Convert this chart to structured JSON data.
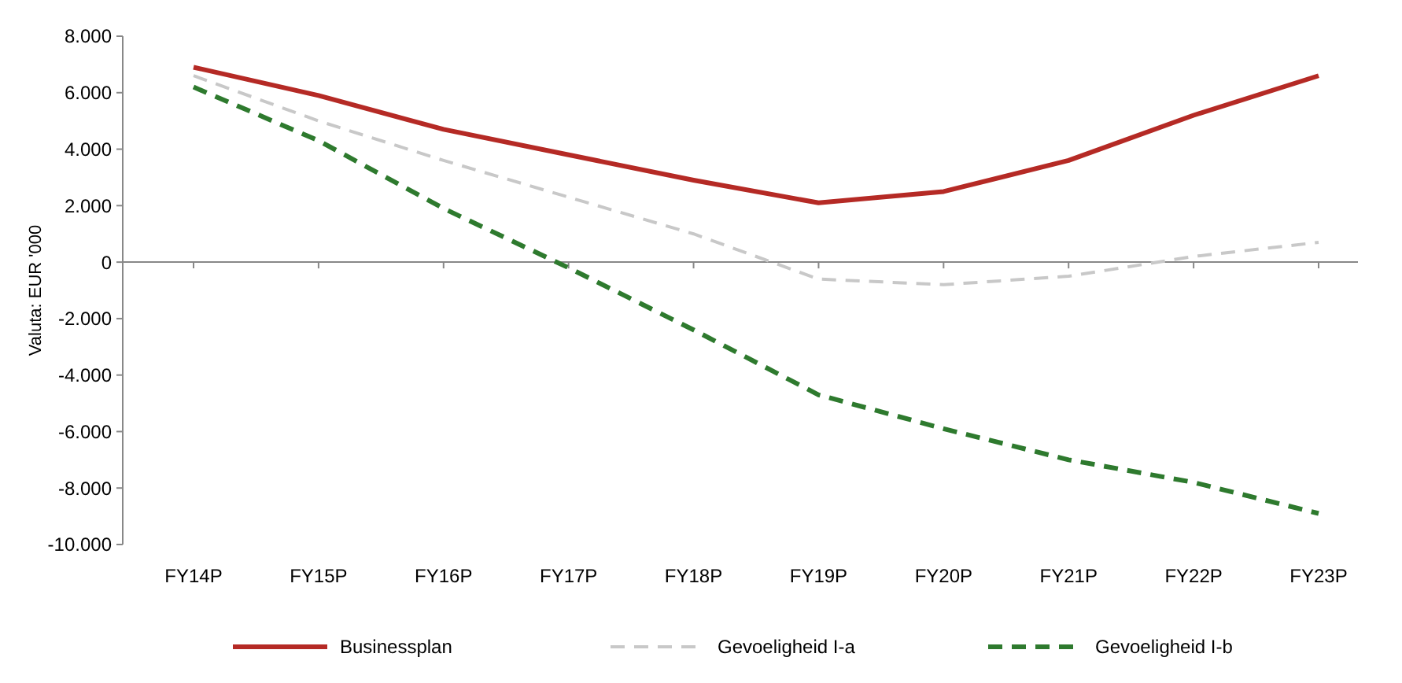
{
  "chart_data": {
    "type": "line",
    "ylabel": "Valuta: EUR '000",
    "categories": [
      "FY14P",
      "FY15P",
      "FY16P",
      "FY17P",
      "FY18P",
      "FY19P",
      "FY20P",
      "FY21P",
      "FY22P",
      "FY23P"
    ],
    "series": [
      {
        "name": "Businessplan",
        "color": "#b52a25",
        "line_style": "solid",
        "values": [
          6900,
          5900,
          4700,
          3800,
          2900,
          2100,
          2500,
          3600,
          5200,
          6600
        ]
      },
      {
        "name": "Gevoeligheid I-a",
        "color": "#c8c8c8",
        "line_style": "dashed",
        "values": [
          6600,
          5000,
          3600,
          2300,
          1000,
          -600,
          -800,
          -500,
          200,
          700
        ]
      },
      {
        "name": "Gevoeligheid I-b",
        "color": "#2e7a2e",
        "line_style": "dashed",
        "values": [
          6200,
          4300,
          1900,
          -200,
          -2400,
          -4700,
          -5900,
          -7000,
          -7800,
          -8900
        ]
      }
    ],
    "ylim": [
      -10000,
      8000
    ],
    "yticks": [
      {
        "value": -10000,
        "label": "-10.000"
      },
      {
        "value": -8000,
        "label": "-8.000"
      },
      {
        "value": -6000,
        "label": "-6.000"
      },
      {
        "value": -4000,
        "label": "-4.000"
      },
      {
        "value": -2000,
        "label": "-2.000"
      },
      {
        "value": 0,
        "label": "0"
      },
      {
        "value": 2000,
        "label": "2.000"
      },
      {
        "value": 4000,
        "label": "4.000"
      },
      {
        "value": 6000,
        "label": "6.000"
      },
      {
        "value": 8000,
        "label": "8.000"
      }
    ],
    "ref_lines": [
      {
        "axis": "y",
        "value": 0,
        "color": "#888888"
      }
    ],
    "grid": false,
    "legend": "bottom",
    "marker": "none"
  }
}
